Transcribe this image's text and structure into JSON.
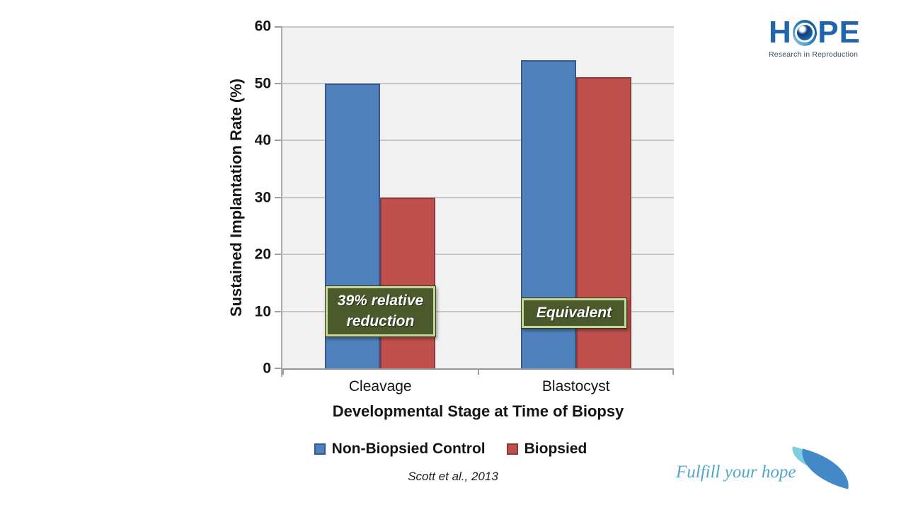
{
  "slide": {
    "citation": "Scott et al., 2013"
  },
  "hope_logo": {
    "word_part_h": "H",
    "word_part_p": "P",
    "word_part_e": "E",
    "subtitle": "Research in Reproduction",
    "brand_blue": "#2166AC",
    "eye_icon": "eye-pupil-in-O"
  },
  "footer": {
    "tagline": "Fulfill your hope",
    "tagline_color": "#4FA6CA",
    "leaf_light_color": "#7ECFDE",
    "leaf_dark_color": "#4389C8"
  },
  "chart_data": {
    "type": "bar",
    "categories": [
      "Cleavage",
      "Blastocyst"
    ],
    "series": [
      {
        "name": "Non-Biopsied Control",
        "values": [
          50,
          54
        ],
        "color": "#4F81BD",
        "border_color": "#36598C"
      },
      {
        "name": "Biopsied",
        "values": [
          30,
          51
        ],
        "color": "#C0504D",
        "border_color": "#8C3A37"
      }
    ],
    "xlabel": "Developmental Stage at Time of Biopsy",
    "ylabel": "Sustained Implantation Rate (%)",
    "ylim": [
      0,
      60
    ],
    "ytick_step": 10,
    "yticks": [
      0,
      10,
      20,
      30,
      40,
      50,
      60
    ],
    "grid": true,
    "plot_background": "#F1F1F1",
    "gridline_color": "#C6C6C6",
    "legend_position": "bottom",
    "annotations": [
      {
        "text": "39% relative reduction",
        "category": "Cleavage"
      },
      {
        "text": "Equivalent",
        "category": "Blastocyst"
      }
    ]
  }
}
